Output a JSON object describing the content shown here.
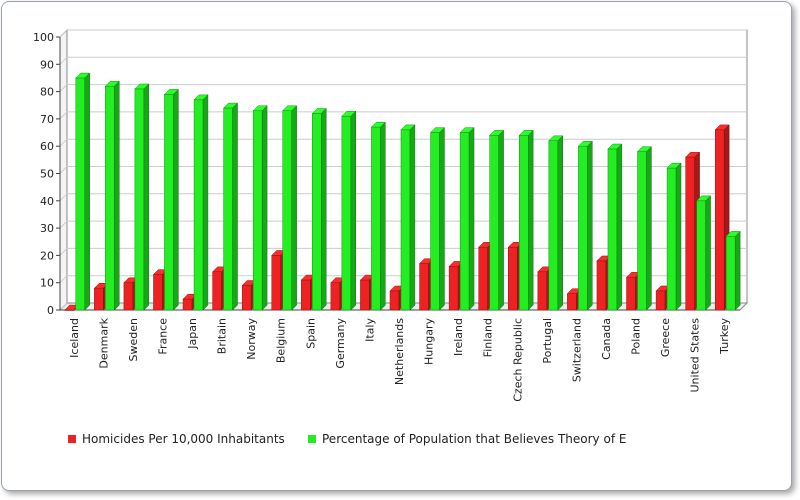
{
  "chart_data": {
    "type": "bar",
    "style": "3d",
    "categories": [
      "Iceland",
      "Denmark",
      "Sweden",
      "France",
      "Japan",
      "Britain",
      "Norway",
      "Belgium",
      "Spain",
      "Germany",
      "Italy",
      "Netherlands",
      "Hungary",
      "Ireland",
      "Finland",
      "Czech Republic",
      "Portugal",
      "Switzerland",
      "Canada",
      "Poland",
      "Greece",
      "United States",
      "Turkey"
    ],
    "series": [
      {
        "name": "Homicides Per 10,000 Inhabitants",
        "color": "#ee2222",
        "values": [
          0,
          8,
          10,
          13,
          4,
          14,
          9,
          20,
          11,
          10,
          11,
          7,
          17,
          16,
          23,
          23,
          14,
          6,
          18,
          12,
          7,
          56,
          66
        ]
      },
      {
        "name": "Percentage of Population that Believes Theory of E",
        "color": "#22ee22",
        "values": [
          85,
          82,
          81,
          79,
          77,
          74,
          73,
          73,
          72,
          71,
          67,
          66,
          65,
          65,
          64,
          64,
          62,
          60,
          59,
          58,
          52,
          40,
          27
        ]
      }
    ],
    "ylim": [
      0,
      100
    ],
    "yticks": [
      0,
      10,
      20,
      30,
      40,
      50,
      60,
      70,
      80,
      90,
      100
    ],
    "grid": true,
    "legend": "bottom"
  }
}
